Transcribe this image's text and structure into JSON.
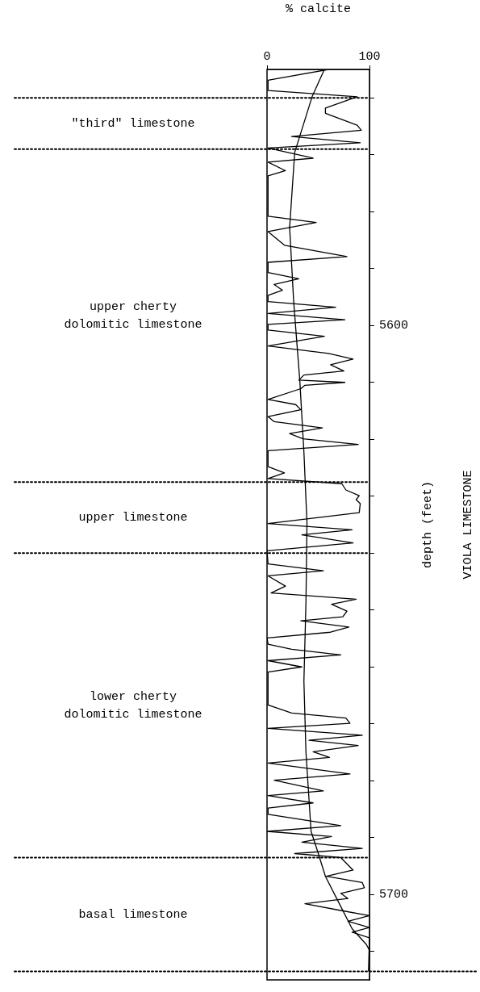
{
  "chart_data": {
    "type": "line",
    "xlabel": "% calcite",
    "ylabel": "depth (feet)",
    "xlim": [
      0,
      100
    ],
    "xticks": [
      0,
      100
    ],
    "ylim": [
      5715,
      5555
    ],
    "yticks": [
      {
        "value": 5560,
        "label": null
      },
      {
        "value": 5570,
        "label": null
      },
      {
        "value": 5580,
        "label": null
      },
      {
        "value": 5590,
        "label": null
      },
      5600,
      {
        "value": 5610,
        "label": null
      },
      {
        "value": 5620,
        "label": null
      },
      {
        "value": 5630,
        "label": null
      },
      {
        "value": 5640,
        "label": null
      },
      {
        "value": 5650,
        "label": null
      },
      {
        "value": 5660,
        "label": null
      },
      {
        "value": 5670,
        "label": null
      },
      {
        "value": 5680,
        "label": null
      },
      {
        "value": 5690,
        "label": null
      },
      5700,
      {
        "value": 5710,
        "label": null
      }
    ],
    "marker": "none",
    "series": [
      {
        "color": "#000000",
        "x": [
          60,
          1,
          1,
          88,
          57,
          57,
          88,
          92,
          24,
          91,
          1,
          45,
          1,
          18,
          1,
          1,
          48,
          1,
          17,
          78,
          1,
          1,
          31,
          7,
          15,
          1,
          1,
          67,
          1,
          76,
          1,
          1,
          56,
          1,
          60,
          84,
          62,
          75,
          36,
          31,
          76,
          37,
          33,
          1,
          28,
          33,
          1,
          7,
          54,
          22,
          35,
          89,
          1,
          1,
          17,
          1,
          73,
          77,
          90,
          87,
          91,
          90,
          1,
          83,
          34,
          84,
          0,
          1,
          55,
          1,
          18,
          4,
          87,
          63,
          78,
          74,
          33,
          80,
          62,
          0,
          1,
          24,
          72,
          1,
          34,
          1,
          1,
          24,
          77,
          81,
          1,
          93,
          41,
          89,
          45,
          61,
          1,
          81,
          7,
          55,
          1,
          45,
          1,
          1,
          72,
          0,
          63,
          34,
          93,
          27,
          72,
          84,
          58,
          93,
          95,
          72,
          79,
          37,
          72,
          100,
          79,
          100,
          83,
          100,
          99
        ],
        "values": [
          5555,
          5556.9,
          5558.7,
          5559.8,
          5561.8,
          5562.7,
          5564.8,
          5565.7,
          5566.8,
          5567.9,
          5568.8,
          5570.6,
          5571.3,
          5572.8,
          5573.7,
          5580.8,
          5581.9,
          5583.5,
          5585.9,
          5587.9,
          5588.9,
          5590.7,
          5591.8,
          5592.8,
          5593.8,
          5594.7,
          5595.8,
          5596.8,
          5597.9,
          5599,
          5599.8,
          5600.8,
          5601.9,
          5603.6,
          5604.9,
          5605.9,
          5606.9,
          5608,
          5608.7,
          5609.6,
          5610,
          5610.5,
          5611.1,
          5613,
          5613.9,
          5614.8,
          5616,
          5616.9,
          5618,
          5619,
          5619.9,
          5620.9,
          5622,
          5624.8,
          5625.9,
          5626.9,
          5627.8,
          5628.9,
          5629.9,
          5630.6,
          5631.3,
          5632.9,
          5634.8,
          5635.9,
          5636.8,
          5638.2,
          5639.6,
          5641.9,
          5643.1,
          5644,
          5645.8,
          5647,
          5648.1,
          5649,
          5650.2,
          5651.2,
          5651.9,
          5653,
          5653.9,
          5654.9,
          5656,
          5656.9,
          5657.9,
          5658.9,
          5660,
          5660.9,
          5666.7,
          5668.1,
          5669,
          5669.9,
          5670.8,
          5672,
          5672.9,
          5673.8,
          5674.9,
          5675.9,
          5676.9,
          5678.8,
          5679.9,
          5681.8,
          5682.6,
          5683.9,
          5684.8,
          5685.9,
          5687.9,
          5688.9,
          5689.8,
          5690.8,
          5691.9,
          5692.8,
          5693.5,
          5695.7,
          5696.8,
          5697.9,
          5698.8,
          5699.8,
          5700.7,
          5701.6,
          5702.8,
          5703.7,
          5704.7,
          5705.8,
          5706.6,
          5707.6,
          5713.5
        ]
      },
      {
        "type": "line",
        "color": "#000000",
        "x": [
          56,
          44,
          27,
          22,
          22,
          26,
          32,
          36,
          39,
          38,
          36,
          38,
          43,
          49,
          57,
          70,
          83,
          97,
          100
        ],
        "values": [
          5555,
          5559.8,
          5569.6,
          5583,
          5582.5,
          5595.8,
          5609.7,
          5622.2,
          5634.7,
          5648.6,
          5662.5,
          5675,
          5688.9,
          5692.2,
          5696.8,
          5701.4,
          5706,
          5708.8,
          5709.8
        ]
      }
    ],
    "ref_lines": [
      {
        "axis": "y",
        "value": 5560,
        "line_style": "dotted",
        "color": "#000000"
      },
      {
        "axis": "y",
        "value": 5569,
        "line_style": "dotted",
        "color": "#000000"
      },
      {
        "axis": "y",
        "value": 5627.5,
        "line_style": "dotted",
        "color": "#000000"
      },
      {
        "axis": "y",
        "value": 5640,
        "line_style": "dotted",
        "color": "#000000"
      },
      {
        "axis": "y",
        "value": 5693.5,
        "line_style": "dotted",
        "color": "#000000"
      },
      {
        "axis": "y",
        "value": 5713.5,
        "line_style": "dotted",
        "color": "#000000"
      }
    ],
    "annotations": [
      "\"third\" limestone",
      "upper cherty\ndolomitic limestone",
      "upper limestone",
      "lower cherty\ndolomitic limestone",
      "basal limestone",
      "VIOLA LIMESTONE"
    ]
  }
}
